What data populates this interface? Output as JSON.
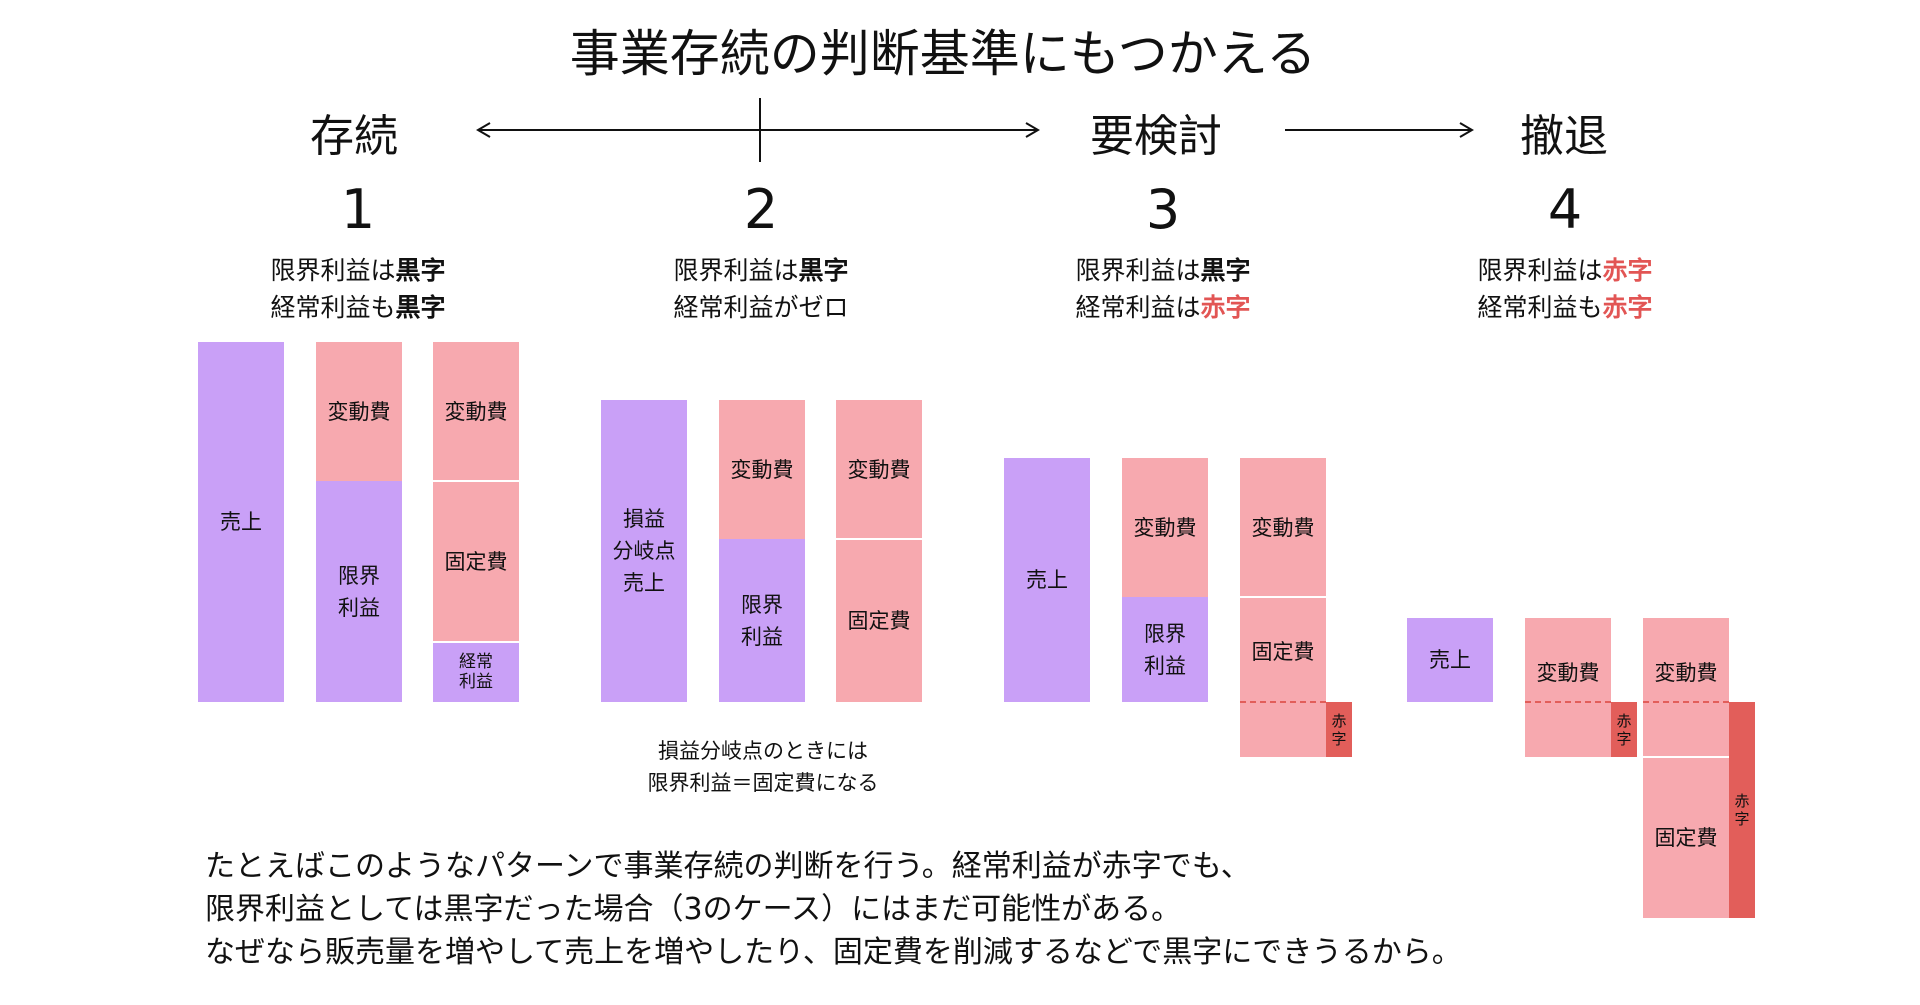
{
  "title": "事業存続の判断基準にもつかえる",
  "scale": {
    "left": "存続",
    "middle": "要検討",
    "right": "撤退"
  },
  "cases": [
    {
      "number": "1",
      "line1_prefix": "限界利益は",
      "line1_value": "黒字",
      "line2_prefix": "経常利益も",
      "line2_value": "黒字"
    },
    {
      "number": "2",
      "line1_prefix": "限界利益は",
      "line1_value": "黒字",
      "line2_prefix": "経常利益がゼロ",
      "line2_value": ""
    },
    {
      "number": "3",
      "line1_prefix": "限界利益は",
      "line1_value": "黒字",
      "line2_prefix": "経常利益は",
      "line2_value": "赤字"
    },
    {
      "number": "4",
      "line1_prefix": "限界利益は",
      "line1_value": "赤字",
      "line2_prefix": "経常利益も",
      "line2_value": "赤字"
    }
  ],
  "labels": {
    "sales": "売上",
    "bep_sales": "損益\n分岐点\n売上",
    "variable_cost": "変動費",
    "marginal_profit": "限界\n利益",
    "fixed_cost": "固定費",
    "ordinary_profit": "経常\n利益",
    "loss": "赤字"
  },
  "note_case2": "損益分岐点のときには\n限界利益＝固定費になる",
  "footer": [
    "たとえばこのようなパターンで事業存続の判断を行う。経常利益が赤字でも、",
    "限界利益としては黒字だった場合（3のケース）にはまだ可能性がある。",
    "なぜなら販売量を増やして売上を増やしたり、固定費を削減するなどで黒字にできうるから。"
  ],
  "colors": {
    "sales": "#c9a0f7",
    "cost": "#f7a9af",
    "loss": "#e25e5a",
    "accent_text": "#e25554"
  }
}
